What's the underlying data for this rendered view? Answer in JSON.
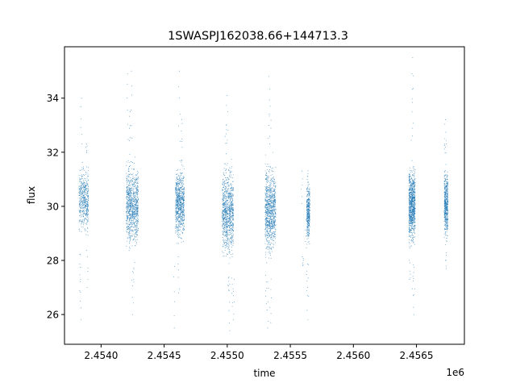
{
  "chart_data": {
    "type": "scatter",
    "title": "1SWASPJ162038.66+144713.3",
    "xlabel": "time",
    "ylabel": "flux",
    "x_offset_label": "1e6",
    "x_scale": 1000000,
    "xlim": [
      2453710,
      2456880
    ],
    "ylim": [
      24.9,
      35.9
    ],
    "x_ticks": [
      2454000,
      2454500,
      2455000,
      2455500,
      2456000,
      2456500
    ],
    "x_tick_labels": [
      "2.4540",
      "2.4545",
      "2.4550",
      "2.4555",
      "2.4560",
      "2.4565"
    ],
    "y_ticks": [
      26,
      28,
      30,
      32,
      34
    ],
    "y_tick_labels": [
      "26",
      "28",
      "30",
      "32",
      "34"
    ],
    "grid": false,
    "marker_color": "#1f77b4",
    "series": [
      {
        "observing_seasons": [
          {
            "x_range": [
              2453825,
              2453900
            ],
            "y_core": [
              28.6,
              31.9
            ],
            "y_extremes": [
              [
                2453840,
                25.8
              ],
              [
                2453845,
                34.0
              ],
              [
                2453835,
                26.5
              ],
              [
                2453890,
                27.0
              ],
              [
                2453885,
                32.3
              ]
            ],
            "density": 0.55
          },
          {
            "x_range": [
              2454200,
              2454295
            ],
            "y_core": [
              28.0,
              32.1
            ],
            "y_extremes": [
              [
                2454210,
                34.9
              ],
              [
                2454240,
                35.0
              ],
              [
                2454250,
                26.0
              ],
              [
                2454230,
                33.5
              ],
              [
                2454260,
                27.2
              ]
            ],
            "density": 1.0
          },
          {
            "x_range": [
              2454590,
              2454660
            ],
            "y_core": [
              28.3,
              31.9
            ],
            "y_extremes": [
              [
                2454580,
                25.5
              ],
              [
                2454620,
                35.0
              ],
              [
                2454615,
                26.8
              ],
              [
                2454640,
                33.2
              ]
            ],
            "density": 0.85
          },
          {
            "x_range": [
              2454960,
              2455050
            ],
            "y_core": [
              27.5,
              32.1
            ],
            "y_extremes": [
              [
                2455000,
                34.1
              ],
              [
                2455020,
                25.4
              ],
              [
                2455040,
                26.3
              ],
              [
                2455050,
                25.8
              ],
              [
                2454990,
                33.0
              ],
              [
                2455010,
                26.9
              ]
            ],
            "density": 1.0
          },
          {
            "x_range": [
              2455300,
              2455385
            ],
            "y_core": [
              27.6,
              32.1
            ],
            "y_extremes": [
              [
                2455330,
                34.8
              ],
              [
                2455320,
                25.5
              ],
              [
                2455345,
                25.7
              ],
              [
                2455310,
                26.4
              ],
              [
                2455340,
                33.7
              ]
            ],
            "density": 1.0
          },
          {
            "x_range": [
              2455630,
              2455655
            ],
            "y_core": [
              28.2,
              31.5
            ],
            "y_extremes": [
              [
                2455640,
                25.8
              ],
              [
                2455635,
                26.7
              ],
              [
                2455590,
                30.1
              ],
              [
                2455600,
                27.8
              ],
              [
                2455625,
                29.5
              ]
            ],
            "density": 0.4
          },
          {
            "x_range": [
              2456440,
              2456490
            ],
            "y_core": [
              28.1,
              32.0
            ],
            "y_extremes": [
              [
                2456470,
                35.5
              ],
              [
                2456480,
                26.0
              ],
              [
                2456475,
                26.7
              ],
              [
                2456465,
                34.9
              ],
              [
                2456445,
                27.3
              ]
            ],
            "density": 1.0
          },
          {
            "x_range": [
              2456720,
              2456750
            ],
            "y_core": [
              28.4,
              31.8
            ],
            "y_extremes": [
              [
                2456730,
                33.2
              ],
              [
                2456735,
                27.7
              ],
              [
                2456725,
                32.5
              ]
            ],
            "density": 0.55
          }
        ]
      }
    ]
  }
}
